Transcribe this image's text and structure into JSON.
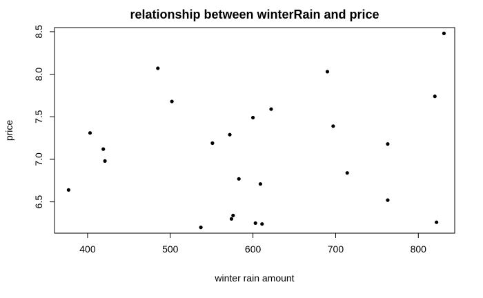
{
  "chart_data": {
    "type": "scatter",
    "title": "relationship between winterRain and price",
    "xlabel": "winter rain amount",
    "ylabel": "price",
    "xlim": [
      360,
      844
    ],
    "ylim": [
      6.132,
      8.548
    ],
    "xticks": [
      400,
      500,
      600,
      700,
      800
    ],
    "yticks": [
      6.5,
      7.0,
      7.5,
      8.0,
      8.5
    ],
    "xtick_labels": [
      "400",
      "500",
      "600",
      "700",
      "800"
    ],
    "ytick_labels": [
      "6.5",
      "7.0",
      "7.5",
      "8.0",
      "8.5"
    ],
    "grid": false,
    "legend": "none",
    "points": [
      {
        "x": 377,
        "y": 6.64
      },
      {
        "x": 403,
        "y": 7.31
      },
      {
        "x": 419,
        "y": 7.12
      },
      {
        "x": 421,
        "y": 6.98
      },
      {
        "x": 485,
        "y": 8.07
      },
      {
        "x": 502,
        "y": 7.68
      },
      {
        "x": 537,
        "y": 6.2
      },
      {
        "x": 551,
        "y": 7.19
      },
      {
        "x": 572,
        "y": 7.29
      },
      {
        "x": 574,
        "y": 6.3
      },
      {
        "x": 576,
        "y": 6.34
      },
      {
        "x": 583,
        "y": 6.77
      },
      {
        "x": 600,
        "y": 7.49
      },
      {
        "x": 603,
        "y": 6.25
      },
      {
        "x": 609,
        "y": 6.71
      },
      {
        "x": 611,
        "y": 6.24
      },
      {
        "x": 622,
        "y": 7.59
      },
      {
        "x": 690,
        "y": 8.03
      },
      {
        "x": 697,
        "y": 7.39
      },
      {
        "x": 714,
        "y": 6.84
      },
      {
        "x": 763,
        "y": 7.18
      },
      {
        "x": 763,
        "y": 6.52
      },
      {
        "x": 820,
        "y": 7.74
      },
      {
        "x": 822,
        "y": 6.26
      },
      {
        "x": 831,
        "y": 8.48
      }
    ]
  }
}
